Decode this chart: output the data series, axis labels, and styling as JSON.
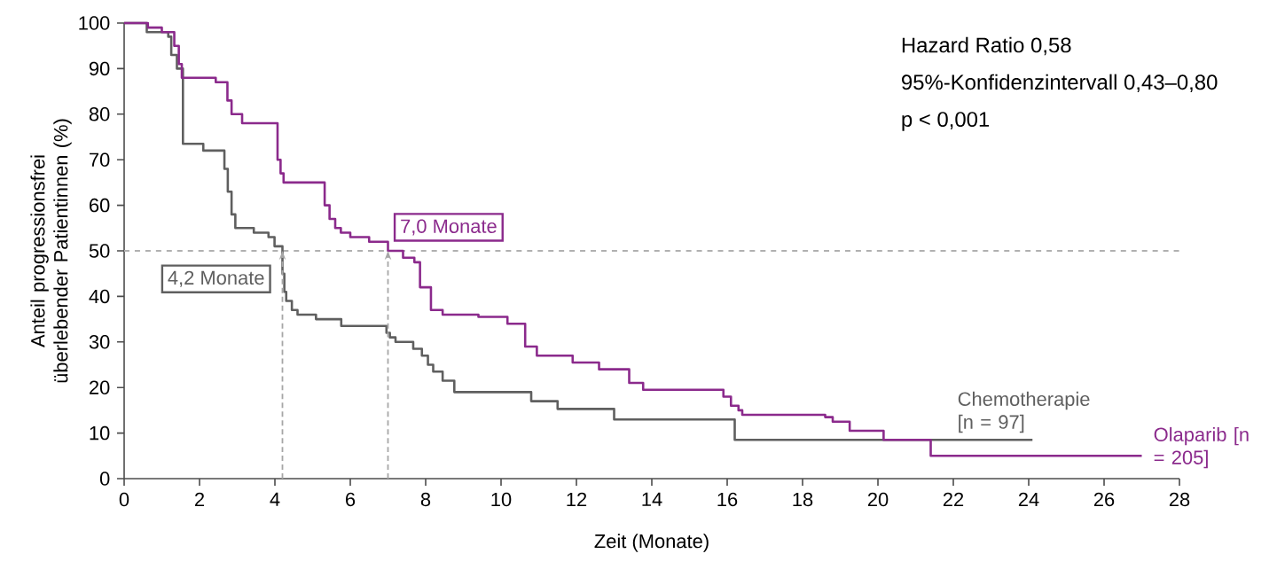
{
  "chart_data": {
    "type": "step",
    "xlabel": "Zeit (Monate)",
    "ylabel": "Anteil progressionsfrei überlebender Patientinnen (%)",
    "xlim": [
      0,
      28
    ],
    "xticks": [
      0,
      2,
      4,
      6,
      8,
      10,
      12,
      14,
      16,
      18,
      20,
      22,
      24,
      26,
      28
    ],
    "ylim": [
      0,
      100
    ],
    "yticks": [
      0,
      10,
      20,
      30,
      40,
      50,
      60,
      70,
      80,
      90,
      100
    ],
    "legend": false,
    "grid": false,
    "series": [
      {
        "name": "Chemotherapie [n = 97]",
        "color": "#5f5f5f",
        "x": [
          0,
          0.6,
          1.17,
          1.25,
          1.4,
          1.56,
          2.1,
          2.66,
          2.75,
          2.85,
          2.95,
          3.44,
          3.83,
          3.99,
          4.2,
          4.25,
          4.3,
          4.45,
          4.6,
          5.09,
          5.76,
          6.96,
          7.05,
          7.2,
          7.67,
          7.9,
          8.06,
          8.2,
          8.45,
          8.76,
          10.8,
          11.5,
          13.0,
          16.2,
          24.1
        ],
        "values": [
          100,
          98,
          97,
          93,
          90,
          73.5,
          72,
          68,
          63,
          58,
          55,
          54,
          53,
          51,
          45,
          41,
          39,
          37,
          36,
          35,
          33.5,
          32,
          31,
          30,
          28.5,
          27,
          25,
          23.5,
          21.5,
          19,
          17,
          15.3,
          13,
          8.5,
          8.5
        ]
      },
      {
        "name": "Olaparib [n = 205]",
        "color": "#8b2a8c",
        "x": [
          0,
          0.63,
          1.0,
          1.33,
          1.45,
          1.53,
          2.43,
          2.74,
          2.85,
          3.13,
          4.07,
          4.15,
          4.23,
          5.32,
          5.45,
          5.6,
          5.75,
          6.0,
          6.5,
          7.0,
          7.4,
          7.7,
          7.85,
          8.14,
          8.45,
          9.4,
          10.17,
          10.64,
          10.95,
          11.9,
          12.6,
          13.4,
          13.77,
          15.9,
          16.1,
          16.3,
          16.4,
          18.6,
          18.8,
          19.25,
          20.15,
          21.4,
          27.0
        ],
        "values": [
          100,
          99,
          98,
          95,
          91,
          88,
          87,
          83,
          80,
          78,
          70,
          67,
          65,
          60,
          57,
          55,
          54,
          53,
          52,
          50,
          48.5,
          47.5,
          42,
          37,
          36,
          35.5,
          34,
          29,
          27,
          25.5,
          24,
          21,
          19.5,
          18,
          16,
          15,
          14,
          13.5,
          12.5,
          10.5,
          8.5,
          5,
          5
        ]
      }
    ],
    "ref_lines": [
      {
        "axis": "y",
        "value": 50,
        "color": "#b0b0b0",
        "line_style": "dashed"
      }
    ],
    "annotations": [
      "Hazard Ratio 0,58",
      "95%-Konfidenzintervall 0,43–0,80",
      "p < 0,001",
      {
        "text": "4,2 Monate",
        "x": 4.2,
        "y": 50
      },
      {
        "text": "7,0 Monate",
        "x": 7.0,
        "y": 50
      }
    ]
  }
}
